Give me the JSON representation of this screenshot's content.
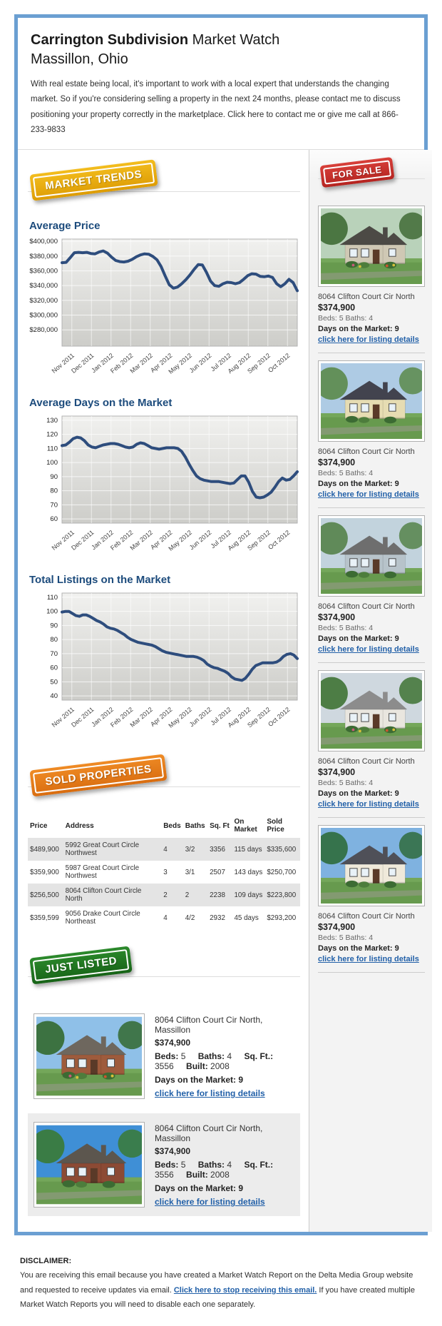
{
  "colors": {
    "frame": "#6b9fd2",
    "heading": "#1c4b7c",
    "link": "#2260a8",
    "chart_line": "#2e4d7d",
    "badge_gold": "#e8a90c",
    "badge_red": "#c9342c",
    "badge_orange": "#e0761d",
    "badge_green": "#1f7a28"
  },
  "header": {
    "title_bold": "Carrington Subdivision",
    "title_rest": " Market Watch",
    "subtitle": "Massillon, Ohio",
    "intro": "With real estate being local, it's important to work with a local expert that understands the changing market. So if you're considering selling a property in the next 24 months, please contact me to discuss positioning your property correctly in the marketplace. Click here to contact me or give me call at 866-233-9833"
  },
  "badges": {
    "market_trends": "MARKET TRENDS",
    "for_sale": "FOR SALE",
    "sold_properties": "SOLD PROPERTIES",
    "just_listed": "JUST LISTED"
  },
  "chart_data": [
    {
      "type": "line",
      "title": "Average Price",
      "x": [
        "Nov 2011",
        "Dec 2011",
        "Jan 2012",
        "Feb 2012",
        "Mar 2012",
        "Apr 2012",
        "May 2012",
        "Jun 2012",
        "Jul 2012",
        "Aug 2012",
        "Sep 2012",
        "Oct 2012"
      ],
      "yticks": [
        {
          "label": "$400,000",
          "value": 400000
        },
        {
          "label": "$380,000",
          "value": 380000
        },
        {
          "label": "$360,000",
          "value": 360000
        },
        {
          "label": "$340,000",
          "value": 340000
        },
        {
          "label": "$320,000",
          "value": 320000
        },
        {
          "label": "$300,000",
          "value": 300000
        },
        {
          "label": "$280,000",
          "value": 280000
        }
      ],
      "ylim": [
        258000,
        403000
      ],
      "grid": true,
      "legend": "none",
      "values": [
        371000,
        371500,
        378000,
        384500,
        385000,
        384500,
        385000,
        383500,
        383000,
        385500,
        387000,
        384000,
        378500,
        374000,
        372500,
        372000,
        373000,
        375500,
        379000,
        381500,
        383000,
        382500,
        379500,
        375000,
        366000,
        353000,
        341000,
        336500,
        338000,
        342500,
        348000,
        354500,
        362000,
        368500,
        368000,
        358000,
        346000,
        340000,
        339000,
        342500,
        344500,
        344000,
        342500,
        344000,
        348500,
        353500,
        356000,
        355500,
        352500,
        352000,
        353000,
        351000,
        342500,
        338500,
        342500,
        348500,
        344000,
        333000
      ]
    },
    {
      "type": "line",
      "title": "Average Days on the Market",
      "x": [
        "Nov 2011",
        "Dec 2011",
        "Jan 2012",
        "Feb 2012",
        "Mar 2012",
        "Apr 2012",
        "May 2012",
        "Jun 2012",
        "Jul 2012",
        "Aug 2012",
        "Sep 2012",
        "Oct 2012"
      ],
      "yticks": [
        {
          "label": "130",
          "value": 130
        },
        {
          "label": "120",
          "value": 120
        },
        {
          "label": "110",
          "value": 110
        },
        {
          "label": "100",
          "value": 100
        },
        {
          "label": "90",
          "value": 90
        },
        {
          "label": "80",
          "value": 80
        },
        {
          "label": "70",
          "value": 70
        },
        {
          "label": "60",
          "value": 60
        }
      ],
      "ylim": [
        57,
        133
      ],
      "grid": true,
      "legend": "none",
      "values": [
        112,
        112.5,
        114.5,
        117,
        118,
        117.5,
        115.5,
        112.5,
        111,
        110.5,
        111.5,
        112.5,
        113,
        113.5,
        113.5,
        113,
        112,
        111,
        110.5,
        111,
        113,
        114,
        113.5,
        112,
        110.5,
        110,
        109.5,
        110,
        110.5,
        110.5,
        110.5,
        110,
        108,
        104,
        99,
        94.5,
        90.5,
        88.5,
        87.5,
        87,
        86.5,
        86.5,
        86.5,
        86,
        85.5,
        85,
        85.5,
        88,
        90.5,
        90.5,
        86,
        79.5,
        75.5,
        75,
        75.5,
        77,
        79,
        82.5,
        86.5,
        89,
        87.5,
        88,
        90.5,
        93.5
      ]
    },
    {
      "type": "line",
      "title": "Total Listings on the Market",
      "x": [
        "Nov 2011",
        "Dec 2011",
        "Jan 2012",
        "Feb 2012",
        "Mar 2012",
        "Apr 2012",
        "May 2012",
        "Jun 2012",
        "Jul 2012",
        "Aug 2012",
        "Sep 2012",
        "Oct 2012"
      ],
      "yticks": [
        {
          "label": "110",
          "value": 110
        },
        {
          "label": "100",
          "value": 100
        },
        {
          "label": "90",
          "value": 90
        },
        {
          "label": "80",
          "value": 80
        },
        {
          "label": "70",
          "value": 70
        },
        {
          "label": "60",
          "value": 60
        },
        {
          "label": "50",
          "value": 50
        },
        {
          "label": "40",
          "value": 40
        }
      ],
      "ylim": [
        37,
        113
      ],
      "grid": true,
      "legend": "none",
      "values": [
        99.5,
        100,
        100,
        98.5,
        97,
        96.5,
        97.5,
        97.5,
        96.5,
        95,
        93.5,
        92.5,
        91,
        89,
        88,
        87.5,
        86.5,
        85,
        83.5,
        81.5,
        80,
        79,
        78,
        77.5,
        77,
        76.5,
        76,
        75,
        73.5,
        72,
        71,
        70.5,
        70,
        69.5,
        69,
        68.5,
        68,
        68,
        68,
        67.5,
        66.5,
        65,
        62.5,
        61,
        60,
        59.5,
        58.5,
        57.5,
        56,
        53.5,
        52,
        51.5,
        51,
        52.5,
        55.5,
        59,
        61.5,
        62.5,
        63.5,
        63.5,
        63.5,
        63.5,
        64,
        65.5,
        68,
        69.5,
        70,
        69,
        66.5
      ]
    }
  ],
  "sidebar": {
    "listings": [
      {
        "address": "8064 Clifton Court Cir North",
        "price": "$374,900",
        "beds_line": "Beds: 5 Baths: 4",
        "days_line": "Days on the Market: 9",
        "link": "click here for listing details"
      },
      {
        "address": "8064 Clifton Court Cir North",
        "price": "$374,900",
        "beds_line": "Beds: 5 Baths: 4",
        "days_line": "Days on the Market: 9",
        "link": "click here for listing details"
      },
      {
        "address": "8064 Clifton Court Cir North",
        "price": "$374,900",
        "beds_line": "Beds: 5 Baths: 4",
        "days_line": "Days on the Market: 9",
        "link": "click here for listing details"
      },
      {
        "address": "8064 Clifton Court Cir North",
        "price": "$374,900",
        "beds_line": "Beds: 5 Baths: 4",
        "days_line": "Days on the Market: 9",
        "link": "click here for listing details"
      },
      {
        "address": "8064 Clifton Court Cir North",
        "price": "$374,900",
        "beds_line": "Beds: 5 Baths: 4",
        "days_line": "Days on the Market: 9",
        "link": "click here for listing details"
      }
    ]
  },
  "sold_table": {
    "headers": [
      "Price",
      "Address",
      "Beds",
      "Baths",
      "Sq. Ft",
      "On Market",
      "Sold Price"
    ],
    "rows": [
      [
        "$489,900",
        "5992 Great Court Circle Northwest",
        "4",
        "3/2",
        "3356",
        "115 days",
        "$335,600"
      ],
      [
        "$359,900",
        "5987 Great Court Circle Northwest",
        "3",
        "3/1",
        "2507",
        "143 days",
        "$250,700"
      ],
      [
        "$256,500",
        "8064 Clifton Court Circle North",
        "2",
        "2",
        "2238",
        "109 days",
        "$223,800"
      ],
      [
        "$359,599",
        "9056 Drake Court Circle Northeast",
        "4",
        "4/2",
        "2932",
        "45 days",
        "$293,200"
      ]
    ]
  },
  "just_listed": {
    "items": [
      {
        "address": "8064 Clifton Court Cir North, Massillon",
        "price": "$374,900",
        "specs": [
          {
            "label": "Beds:",
            "value": "5"
          },
          {
            "label": "Baths:",
            "value": "4"
          },
          {
            "label": "Sq. Ft.:",
            "value": "3556"
          },
          {
            "label": "Built:",
            "value": "2008"
          }
        ],
        "days_line": "Days on the Market: 9",
        "link": "click here for listing details"
      },
      {
        "address": "8064 Clifton Court Cir North, Massillon",
        "price": "$374,900",
        "specs": [
          {
            "label": "Beds:",
            "value": "5"
          },
          {
            "label": "Baths:",
            "value": "4"
          },
          {
            "label": "Sq. Ft.:",
            "value": "3556"
          },
          {
            "label": "Built:",
            "value": "2008"
          }
        ],
        "days_line": "Days on the Market: 9",
        "link": "click here for listing details"
      }
    ]
  },
  "disclaimer": {
    "heading": "DISCLAIMER:",
    "text_before": "You are receiving this email because you have created a Market Watch Report on the Delta Media Group website and requested to receive updates via email. ",
    "link": "Click here to stop receiving this email.",
    "text_after": " If you have created multiple Market Watch Reports you will need to disable each one separately."
  }
}
